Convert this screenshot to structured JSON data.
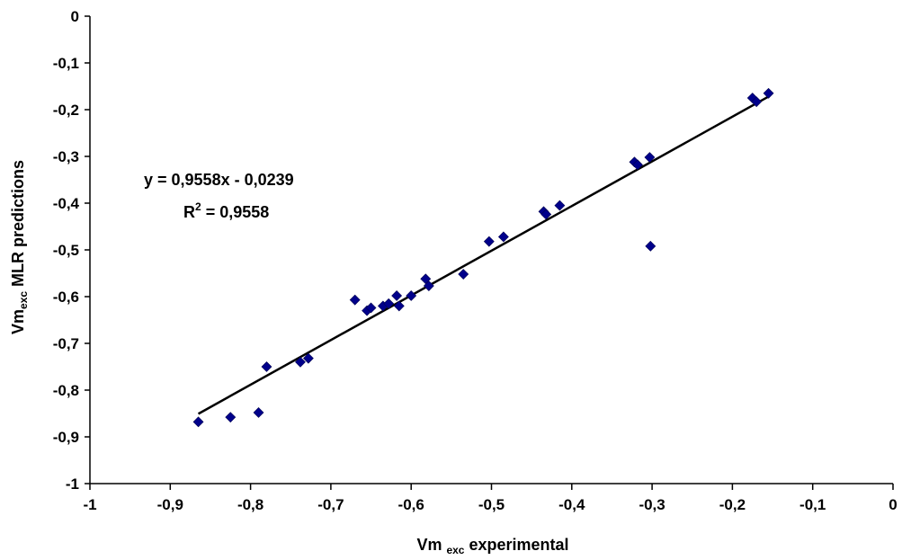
{
  "chart_data": {
    "type": "scatter",
    "xlim": [
      -1,
      0
    ],
    "ylim": [
      -1,
      0
    ],
    "x_ticks": [
      -1,
      -0.9,
      -0.8,
      -0.7,
      -0.6,
      -0.5,
      -0.4,
      -0.3,
      -0.2,
      -0.1,
      0
    ],
    "y_ticks": [
      0,
      -0.1,
      -0.2,
      -0.3,
      -0.4,
      -0.5,
      -0.6,
      -0.7,
      -0.8,
      -0.9,
      -1
    ],
    "x_tick_labels": [
      "-1",
      "-0,9",
      "-0,8",
      "-0,7",
      "-0,6",
      "-0,5",
      "-0,4",
      "-0,3",
      "-0,2",
      "-0,1",
      "0"
    ],
    "y_tick_labels": [
      "0",
      "-0,1",
      "-0,2",
      "-0,3",
      "-0,4",
      "-0,5",
      "-0,6",
      "-0,7",
      "-0,8",
      "-0,9",
      "-1"
    ],
    "xlabel": {
      "main": "Vm",
      "sub": "exc",
      "rest": "experimental"
    },
    "ylabel": {
      "main": "Vm",
      "sub": "exc",
      "rest": "MLR predictions"
    },
    "grid": false,
    "marker": "diamond",
    "marker_color": "#00008b",
    "line_color": "#000000",
    "points": [
      {
        "x": -0.865,
        "y": -0.868
      },
      {
        "x": -0.825,
        "y": -0.858
      },
      {
        "x": -0.79,
        "y": -0.848
      },
      {
        "x": -0.78,
        "y": -0.75
      },
      {
        "x": -0.738,
        "y": -0.74
      },
      {
        "x": -0.728,
        "y": -0.732
      },
      {
        "x": -0.67,
        "y": -0.607
      },
      {
        "x": -0.655,
        "y": -0.63
      },
      {
        "x": -0.65,
        "y": -0.624
      },
      {
        "x": -0.635,
        "y": -0.62
      },
      {
        "x": -0.628,
        "y": -0.615
      },
      {
        "x": -0.618,
        "y": -0.598
      },
      {
        "x": -0.615,
        "y": -0.62
      },
      {
        "x": -0.6,
        "y": -0.598
      },
      {
        "x": -0.582,
        "y": -0.562
      },
      {
        "x": -0.578,
        "y": -0.577
      },
      {
        "x": -0.535,
        "y": -0.552
      },
      {
        "x": -0.503,
        "y": -0.482
      },
      {
        "x": -0.485,
        "y": -0.472
      },
      {
        "x": -0.435,
        "y": -0.418
      },
      {
        "x": -0.432,
        "y": -0.424
      },
      {
        "x": -0.415,
        "y": -0.405
      },
      {
        "x": -0.322,
        "y": -0.312
      },
      {
        "x": -0.318,
        "y": -0.318
      },
      {
        "x": -0.303,
        "y": -0.302
      },
      {
        "x": -0.302,
        "y": -0.492
      },
      {
        "x": -0.175,
        "y": -0.175
      },
      {
        "x": -0.17,
        "y": -0.183
      },
      {
        "x": -0.155,
        "y": -0.165
      }
    ],
    "trendline": {
      "slope": 0.9558,
      "intercept": -0.0239,
      "x_start": -0.865,
      "x_end": -0.155
    },
    "annotation": {
      "equation": "y = 0,9558x - 0,0239",
      "r2_prefix": "R",
      "r2_sup": "2",
      "r2_value": " = 0,9558"
    }
  }
}
